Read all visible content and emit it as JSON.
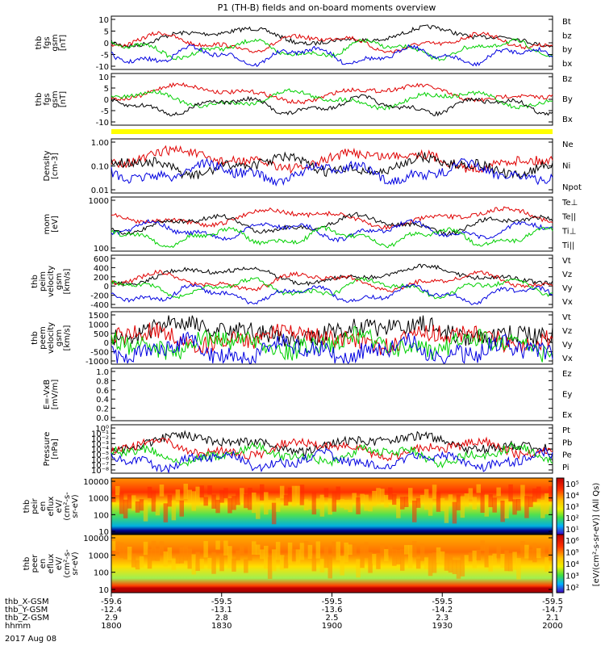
{
  "title": "P1 (TH-B) fields and on-board moments overview",
  "date_label": "2017 Aug 08",
  "colors": {
    "black": "#000000",
    "red": "#e00000",
    "green": "#00d000",
    "blue": "#0000e0",
    "yellow": "#ffff00"
  },
  "chart_data": [
    {
      "type": "line",
      "ylabel": [
        "thb",
        "fgs",
        "gsm",
        "[nT]"
      ],
      "y_ticks": [
        "10",
        "5",
        "0",
        "-5",
        "-10"
      ],
      "ylim": [
        -10,
        10
      ],
      "series": [
        {
          "name": "Bt",
          "color": "black"
        },
        {
          "name": "bz",
          "color": "red"
        },
        {
          "name": "by",
          "color": "green"
        },
        {
          "name": "bx",
          "color": "blue"
        }
      ]
    },
    {
      "type": "line",
      "ylabel": [
        "thb",
        "fgs",
        "gsm",
        "[nT]"
      ],
      "y_ticks": [
        "10",
        "5",
        "0",
        "-5",
        "-10"
      ],
      "ylim": [
        -12,
        12
      ],
      "series": [
        {
          "name": "Bz",
          "color": "red"
        },
        {
          "name": "By",
          "color": "green"
        },
        {
          "name": "Bx",
          "color": "black"
        }
      ]
    },
    {
      "type": "bar",
      "ylabel": [],
      "y_ticks": [],
      "series": []
    },
    {
      "type": "line",
      "log": true,
      "ylabel": [
        "Density",
        "[cm-3]"
      ],
      "y_ticks": [
        "1.00",
        "0.10",
        "0.01"
      ],
      "series": [
        {
          "name": "Ne",
          "color": "red"
        },
        {
          "name": "Ni",
          "color": "black"
        },
        {
          "name": "Npot",
          "color": "blue"
        }
      ]
    },
    {
      "type": "line",
      "log": true,
      "ylabel": [
        "mom",
        "[eV]"
      ],
      "y_ticks": [
        "1000",
        "100"
      ],
      "series": [
        {
          "name": "Te⊥",
          "color": "red"
        },
        {
          "name": "Te||",
          "color": "black"
        },
        {
          "name": "Ti⊥",
          "color": "blue"
        },
        {
          "name": "Ti||",
          "color": "green"
        }
      ]
    },
    {
      "type": "line",
      "ylabel": [
        "thb",
        "peim",
        "velocity",
        "gsm",
        "[km/s]"
      ],
      "y_ticks": [
        "600",
        "400",
        "200",
        "0",
        "-200",
        "-400"
      ],
      "ylim": [
        -400,
        600
      ],
      "series": [
        {
          "name": "Vt",
          "color": "black"
        },
        {
          "name": "Vz",
          "color": "red"
        },
        {
          "name": "Vy",
          "color": "green"
        },
        {
          "name": "Vx",
          "color": "blue"
        }
      ]
    },
    {
      "type": "line",
      "ylabel": [
        "thb",
        "peem",
        "velocity",
        "gsm",
        "[km/s]"
      ],
      "y_ticks": [
        "1500",
        "1000",
        "500",
        "0",
        "-500",
        "-1000"
      ],
      "ylim": [
        -1000,
        1500
      ],
      "series": [
        {
          "name": "Vt",
          "color": "black"
        },
        {
          "name": "Vz",
          "color": "red"
        },
        {
          "name": "Vy",
          "color": "green"
        },
        {
          "name": "Vx",
          "color": "blue"
        }
      ]
    },
    {
      "type": "line",
      "ylabel": [
        "E=-VxB",
        "[mV/m]"
      ],
      "y_ticks": [
        "1.0",
        "0.8",
        "0.6",
        "0.4",
        "0.2",
        "0.0"
      ],
      "ylim": [
        0,
        1
      ],
      "series": [
        {
          "name": "Ez",
          "color": "red"
        },
        {
          "name": "Ey",
          "color": "green"
        },
        {
          "name": "Ex",
          "color": "blue"
        }
      ]
    },
    {
      "type": "line",
      "log": true,
      "ylabel": [
        "Pressure",
        "[nPa]"
      ],
      "y_ticks": [
        "10⁰",
        "10⁻¹",
        "10⁻²",
        "10⁻³",
        "10⁻⁴",
        "10⁻⁵",
        "10⁻⁶",
        "10⁻⁷",
        "10⁻⁸"
      ],
      "series": [
        {
          "name": "Pt",
          "color": "black"
        },
        {
          "name": "Pb",
          "color": "red"
        },
        {
          "name": "Pe",
          "color": "green"
        },
        {
          "name": "Pi",
          "color": "blue"
        }
      ]
    },
    {
      "type": "heatmap",
      "ylabel": [
        "thb",
        "peir",
        "en",
        "eflux",
        "eV/",
        "(cm²-s-",
        "sr-eV)"
      ],
      "y_ticks": [
        "10000",
        "1000",
        "100",
        "10"
      ]
    },
    {
      "type": "heatmap",
      "ylabel": [
        "thb",
        "peer",
        "en",
        "eflux",
        "eV/",
        "(cm²-s-",
        "sr-eV)"
      ],
      "y_ticks": [
        "10000",
        "1000",
        "100",
        "10"
      ]
    }
  ],
  "colorbar": {
    "label": "[eV/(cm²-s-sr-eV)] (All Qs)",
    "upper_ticks": [
      "10⁵",
      "10⁴",
      "10³",
      "10²",
      "10¹"
    ],
    "lower_ticks": [
      "10⁶",
      "10⁵",
      "10⁴",
      "10³",
      "10²"
    ]
  },
  "x_axis": {
    "labels": [
      "thb_X-GSM",
      "thb_Y-GSM",
      "thb_Z-GSM",
      "hhmm"
    ],
    "ticks": [
      {
        "x": "-59.6",
        "y": "-12.4",
        "z": "2.9",
        "hhmm": "1800"
      },
      {
        "x": "-59.5",
        "y": "-13.1",
        "z": "2.8",
        "hhmm": "1830"
      },
      {
        "x": "-59.5",
        "y": "-13.6",
        "z": "2.5",
        "hhmm": "1900"
      },
      {
        "x": "-59.5",
        "y": "-14.2",
        "z": "2.3",
        "hhmm": "1930"
      },
      {
        "x": "-59.5",
        "y": "-14.7",
        "z": "2.1",
        "hhmm": "2000"
      }
    ]
  }
}
